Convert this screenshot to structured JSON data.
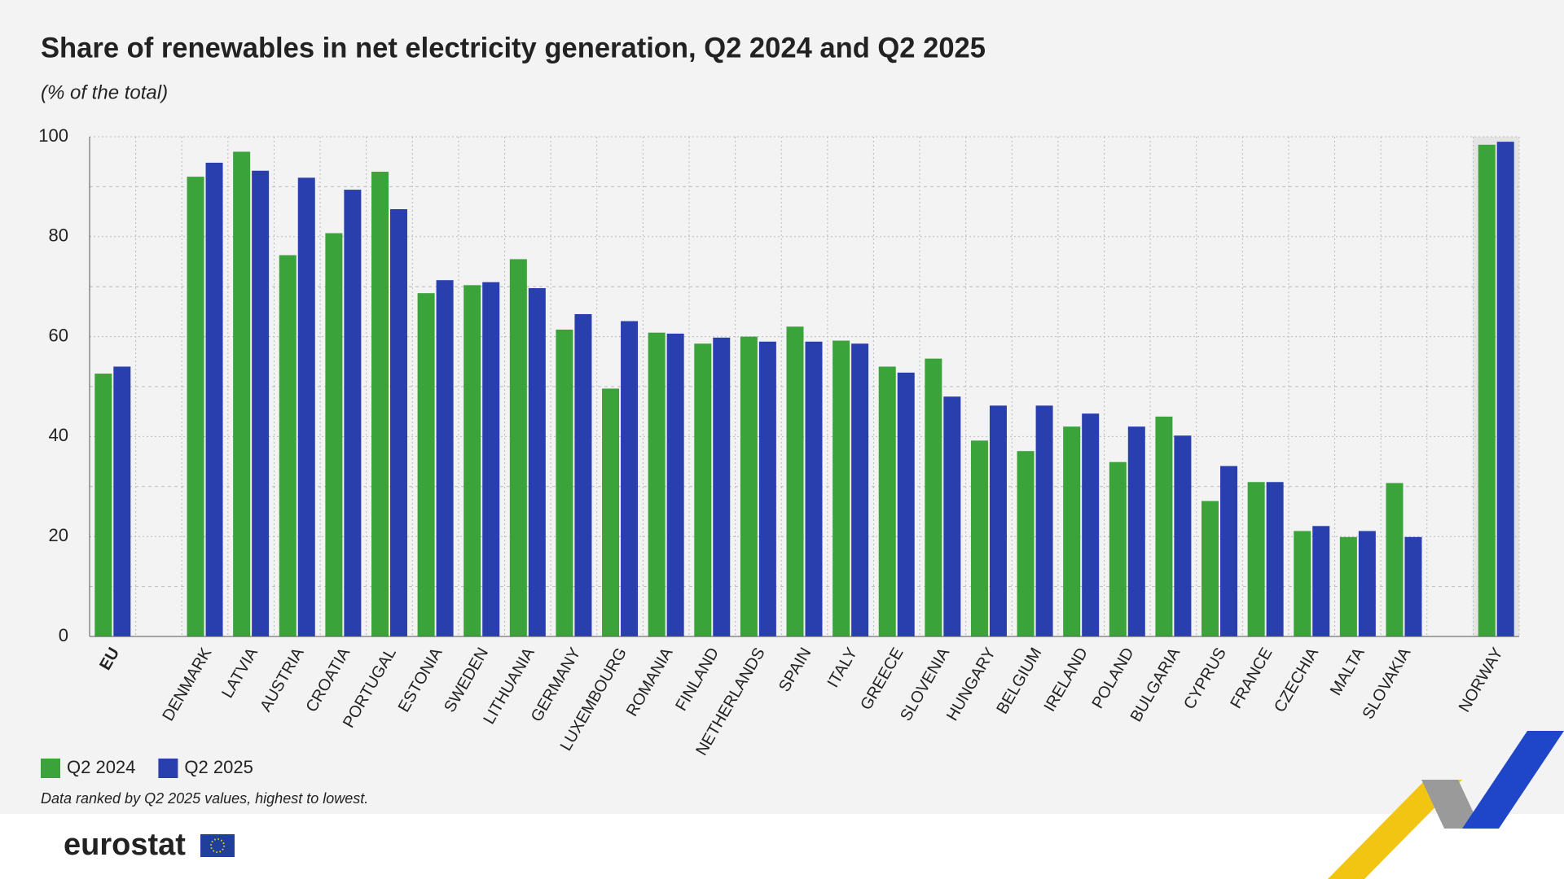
{
  "chart_data": {
    "type": "bar",
    "title": "Share of renewables in net electricity generation, Q2 2024 and Q2 2025",
    "subtitle": "(% of the total)",
    "note": "Data ranked by Q2 2025 values, highest to lowest.",
    "categories": [
      "EU",
      null,
      "DENMARK",
      "LATVIA",
      "AUSTRIA",
      "CROATIA",
      "PORTUGAL",
      "ESTONIA",
      "SWEDEN",
      "LITHUANIA",
      "GERMANY",
      "LUXEMBOURG",
      "ROMANIA",
      "FINLAND",
      "NETHERLANDS",
      "SPAIN",
      "ITALY",
      "GREECE",
      "SLOVENIA",
      "HUNGARY",
      "BELGIUM",
      "IRELAND",
      "POLAND",
      "BULGARIA",
      "CYPRUS",
      "FRANCE",
      "CZECHIA",
      "MALTA",
      "SLOVAKIA",
      null,
      "NORWAY"
    ],
    "series": [
      {
        "name": "Q2 2024",
        "color": "#3aa33a",
        "values": [
          52.6,
          null,
          92.0,
          97.0,
          76.3,
          80.7,
          93.0,
          68.7,
          70.3,
          75.5,
          61.4,
          49.6,
          60.8,
          58.6,
          60.0,
          62.0,
          59.2,
          54.0,
          55.6,
          39.2,
          37.1,
          42.0,
          34.9,
          44.0,
          27.1,
          30.9,
          21.1,
          19.9,
          30.7,
          null,
          98.4
        ]
      },
      {
        "name": "Q2 2025",
        "color": "#2a3fae",
        "values": [
          54.0,
          null,
          94.8,
          93.2,
          91.8,
          89.4,
          85.5,
          71.3,
          70.9,
          69.7,
          64.5,
          63.1,
          60.6,
          59.8,
          59.0,
          59.0,
          58.6,
          52.8,
          48.0,
          46.2,
          46.2,
          44.6,
          42.0,
          40.2,
          34.1,
          30.9,
          22.1,
          21.1,
          19.9,
          null,
          99.0
        ]
      }
    ],
    "ylim": [
      0,
      100
    ],
    "yticks": [
      0,
      20,
      40,
      60,
      80,
      100
    ],
    "minor_yticks": [
      10,
      30,
      50,
      70,
      90
    ],
    "grid": true
  },
  "footer": {
    "logo": "eurostat"
  }
}
